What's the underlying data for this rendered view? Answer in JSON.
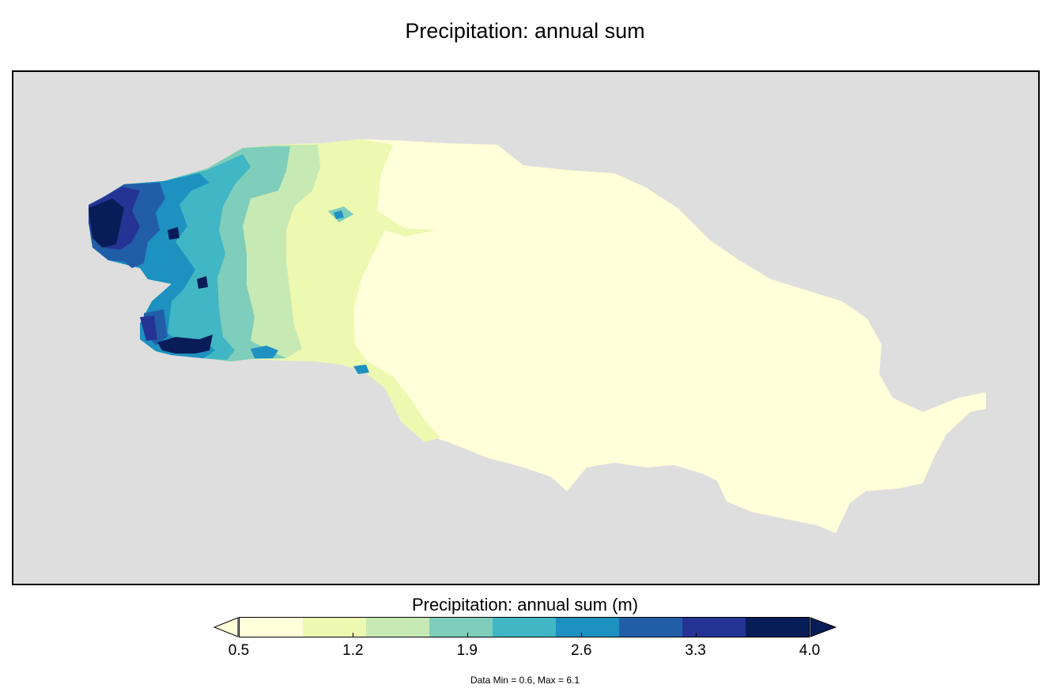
{
  "title": "Precipitation: annual sum",
  "colorbar": {
    "label": "Precipitation: annual sum (m)",
    "colors": [
      "#ffffd9",
      "#edf8b1",
      "#c7e9b4",
      "#7fcdbb",
      "#41b6c4",
      "#1d91c0",
      "#225ea8",
      "#253494",
      "#081d58"
    ],
    "under_color": "#ffffd9",
    "over_color": "#081d58",
    "tick_labels": [
      "0.5",
      "1.2",
      "1.9",
      "2.6",
      "3.3",
      "4.0"
    ],
    "tick_values": [
      0.5,
      1.2,
      1.9,
      2.6,
      3.3,
      4.0
    ],
    "range": [
      0.5,
      4.0
    ]
  },
  "stats_text": "Data Min = 0.6, Max = 6.1",
  "map": {
    "ocean_color": "#dedede",
    "land_colors": {
      "very_low": "#ffffd9",
      "low": "#edf8b1",
      "low_mid": "#c7e9b4",
      "mid": "#7fcdbb",
      "mid_high": "#41b6c4",
      "high": "#1d91c0",
      "higher": "#225ea8",
      "very_high": "#253494",
      "max": "#081d58"
    }
  }
}
